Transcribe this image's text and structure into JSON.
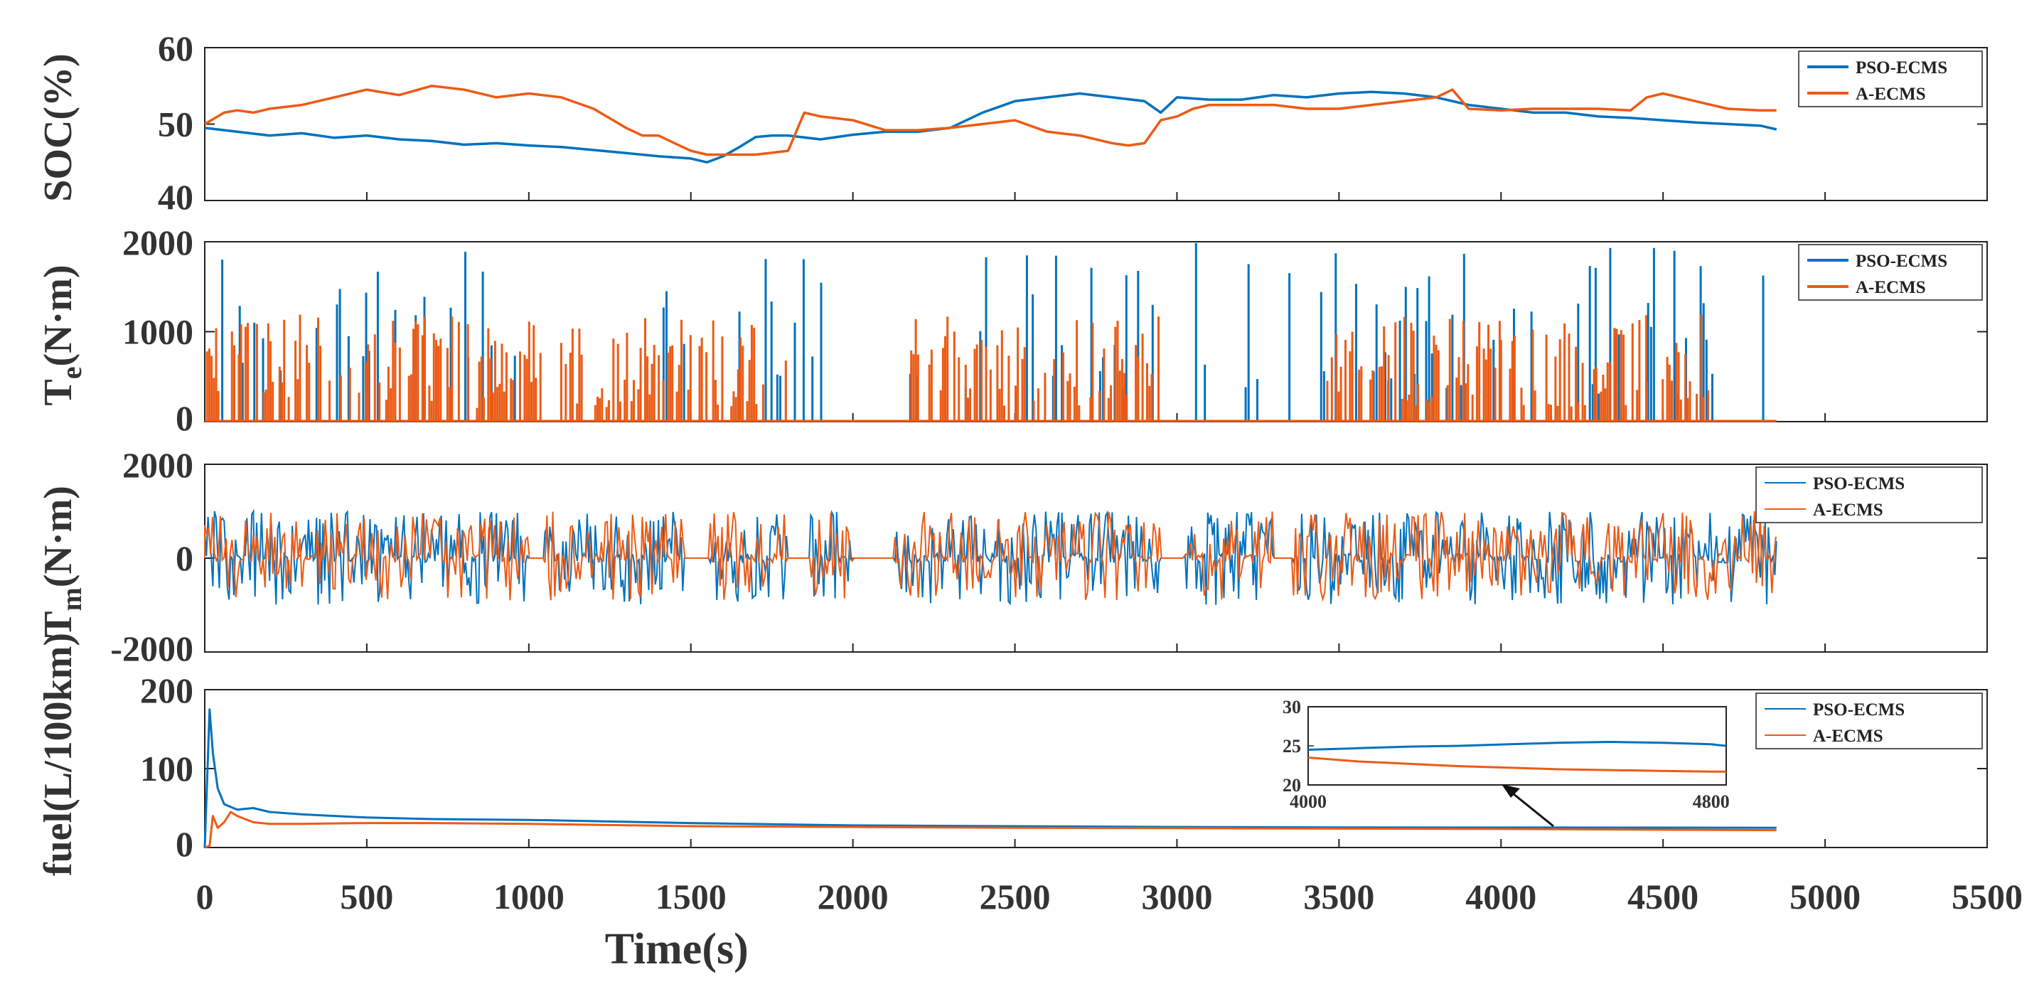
{
  "chart_data": [
    {
      "type": "line",
      "panel": "soc",
      "ylabel": "SOC(%)",
      "xlim": [
        0,
        5500
      ],
      "ylim": [
        40,
        60
      ],
      "yticks": [
        "40",
        "50",
        "60"
      ],
      "yticks_values": [
        40,
        50,
        60
      ],
      "legend": {
        "placement": "top-right",
        "entries": [
          "PSO-ECMS",
          "A-ECMS"
        ]
      },
      "series": [
        {
          "name": "PSO-ECMS",
          "color": "#0072BD",
          "x": [
            0,
            100,
            200,
            300,
            400,
            500,
            600,
            700,
            800,
            900,
            1000,
            1100,
            1200,
            1300,
            1400,
            1500,
            1550,
            1600,
            1650,
            1700,
            1750,
            1800,
            1900,
            2000,
            2100,
            2200,
            2300,
            2400,
            2500,
            2600,
            2700,
            2800,
            2900,
            2950,
            3000,
            3100,
            3200,
            3300,
            3400,
            3500,
            3600,
            3700,
            3800,
            3900,
            4000,
            4100,
            4200,
            4300,
            4400,
            4500,
            4600,
            4700,
            4800,
            4850
          ],
          "values": [
            49.5,
            49.0,
            48.5,
            48.8,
            48.2,
            48.5,
            48.0,
            47.8,
            47.3,
            47.5,
            47.2,
            47.0,
            46.6,
            46.2,
            45.8,
            45.5,
            45.0,
            45.8,
            47.0,
            48.3,
            48.5,
            48.5,
            48.0,
            48.6,
            49.0,
            49.0,
            49.5,
            51.5,
            53.0,
            53.5,
            54.0,
            53.5,
            53.0,
            51.5,
            53.5,
            53.2,
            53.2,
            53.8,
            53.5,
            54.0,
            54.2,
            54.0,
            53.5,
            52.5,
            52.0,
            51.5,
            51.5,
            51.0,
            50.8,
            50.5,
            50.2,
            50.0,
            49.8,
            49.3
          ]
        },
        {
          "name": "A-ECMS",
          "color": "#EC5B16",
          "x": [
            0,
            60,
            100,
            150,
            200,
            300,
            400,
            500,
            600,
            700,
            800,
            900,
            1000,
            1100,
            1200,
            1300,
            1350,
            1400,
            1450,
            1500,
            1550,
            1600,
            1700,
            1800,
            1850,
            1900,
            2000,
            2100,
            2200,
            2300,
            2400,
            2500,
            2600,
            2700,
            2800,
            2850,
            2900,
            2950,
            3000,
            3050,
            3100,
            3200,
            3300,
            3400,
            3500,
            3600,
            3700,
            3800,
            3850,
            3900,
            4000,
            4100,
            4200,
            4300,
            4400,
            4450,
            4500,
            4600,
            4700,
            4800,
            4850
          ],
          "values": [
            50.0,
            51.5,
            51.8,
            51.5,
            52.0,
            52.5,
            53.5,
            54.5,
            53.8,
            55.0,
            54.5,
            53.5,
            54.0,
            53.5,
            52.0,
            49.5,
            48.5,
            48.5,
            47.5,
            46.5,
            46.0,
            46.0,
            46.0,
            46.5,
            51.5,
            51.0,
            50.5,
            49.2,
            49.2,
            49.5,
            50.0,
            50.5,
            49.0,
            48.5,
            47.5,
            47.2,
            47.5,
            50.5,
            51.0,
            52.0,
            52.5,
            52.5,
            52.5,
            52.0,
            52.0,
            52.5,
            53.0,
            53.5,
            54.5,
            52.0,
            51.8,
            52.0,
            52.0,
            52.0,
            51.8,
            53.5,
            54.0,
            53.0,
            52.0,
            51.8,
            51.8
          ]
        }
      ]
    },
    {
      "type": "line",
      "panel": "engine_torque",
      "ylabel": "Te(N·m)",
      "xlim": [
        0,
        5500
      ],
      "ylim": [
        0,
        2000
      ],
      "yticks": [
        "0",
        "1000",
        "2000"
      ],
      "yticks_values": [
        0,
        1000,
        2000
      ],
      "legend": {
        "placement": "top-right",
        "entries": [
          "PSO-ECMS",
          "A-ECMS"
        ]
      },
      "series": [
        {
          "name": "PSO-ECMS",
          "color": "#0072BD",
          "style": "spiky torque trace",
          "range": [
            0,
            2000
          ],
          "x_span": [
            0,
            4850
          ]
        },
        {
          "name": "A-ECMS",
          "color": "#EC5B16",
          "style": "spiky torque trace",
          "range": [
            0,
            2000
          ],
          "x_span": [
            0,
            4850
          ]
        }
      ]
    },
    {
      "type": "line",
      "panel": "motor_torque",
      "ylabel": "Tm(N·m)",
      "xlim": [
        0,
        5500
      ],
      "ylim": [
        -2000,
        2000
      ],
      "yticks": [
        "-2000",
        "0",
        "2000"
      ],
      "yticks_values": [
        -2000,
        0,
        2000
      ],
      "legend": {
        "placement": "top-right",
        "entries": [
          "PSO-ECMS",
          "A-ECMS"
        ]
      },
      "series": [
        {
          "name": "PSO-ECMS",
          "color": "#0072BD",
          "style": "oscillating torque trace",
          "range": [
            -1000,
            1000
          ],
          "x_span": [
            0,
            4850
          ]
        },
        {
          "name": "A-ECMS",
          "color": "#EC5B16",
          "style": "oscillating torque trace",
          "range": [
            -1000,
            1000
          ],
          "x_span": [
            0,
            4850
          ]
        }
      ]
    },
    {
      "type": "line",
      "panel": "fuel",
      "ylabel": "fuel(L/100km)",
      "xlabel": "Time(s)",
      "xlim": [
        0,
        5500
      ],
      "ylim": [
        0,
        200
      ],
      "xticks": [
        "0",
        "500",
        "1000",
        "1500",
        "2000",
        "2500",
        "3000",
        "3500",
        "4000",
        "4500",
        "5000",
        "5500"
      ],
      "xticks_values": [
        0,
        500,
        1000,
        1500,
        2000,
        2500,
        3000,
        3500,
        4000,
        4500,
        5000,
        5500
      ],
      "yticks": [
        "0",
        "100",
        "200"
      ],
      "yticks_values": [
        0,
        100,
        200
      ],
      "legend": {
        "placement": "top-right",
        "entries": [
          "PSO-ECMS",
          "A-ECMS"
        ]
      },
      "series": [
        {
          "name": "PSO-ECMS",
          "color": "#0072BD",
          "x": [
            0,
            15,
            25,
            40,
            60,
            100,
            150,
            200,
            300,
            400,
            500,
            700,
            1000,
            1500,
            2000,
            2500,
            3000,
            3500,
            4000,
            4500,
            4850
          ],
          "values": [
            0,
            175,
            120,
            75,
            55,
            48,
            50,
            45,
            42,
            40,
            38,
            36,
            35,
            31,
            28,
            27,
            26,
            25.5,
            25.3,
            25.2,
            25.0
          ]
        },
        {
          "name": "A-ECMS",
          "color": "#EC5B16",
          "x": [
            0,
            15,
            25,
            40,
            60,
            80,
            100,
            150,
            200,
            300,
            500,
            700,
            1000,
            1500,
            2000,
            2500,
            3000,
            3500,
            4000,
            4500,
            4850
          ],
          "values": [
            0,
            2,
            40,
            25,
            32,
            45,
            40,
            32,
            30,
            30,
            31,
            31,
            30,
            27,
            26,
            25,
            24.5,
            24,
            23.5,
            22.5,
            22.0
          ]
        }
      ],
      "inset": {
        "xlim": [
          4000,
          4830
        ],
        "ylim": [
          20,
          30
        ],
        "xticks": [
          "4000",
          "4800"
        ],
        "xticks_values": [
          4000,
          4800
        ],
        "yticks": [
          "20",
          "25",
          "30"
        ],
        "yticks_values": [
          20,
          25,
          30
        ],
        "series": [
          {
            "name": "PSO-ECMS",
            "color": "#0072BD",
            "x": [
              4000,
              4100,
              4200,
              4300,
              4400,
              4500,
              4600,
              4700,
              4800,
              4830
            ],
            "values": [
              24.5,
              24.7,
              24.9,
              25.0,
              25.2,
              25.4,
              25.5,
              25.4,
              25.2,
              25.0
            ]
          },
          {
            "name": "A-ECMS",
            "color": "#EC5B16",
            "x": [
              4000,
              4100,
              4200,
              4300,
              4400,
              4500,
              4600,
              4700,
              4800,
              4830
            ],
            "values": [
              23.5,
              23.0,
              22.7,
              22.4,
              22.2,
              22.0,
              21.9,
              21.8,
              21.7,
              21.7
            ]
          }
        ]
      }
    }
  ]
}
